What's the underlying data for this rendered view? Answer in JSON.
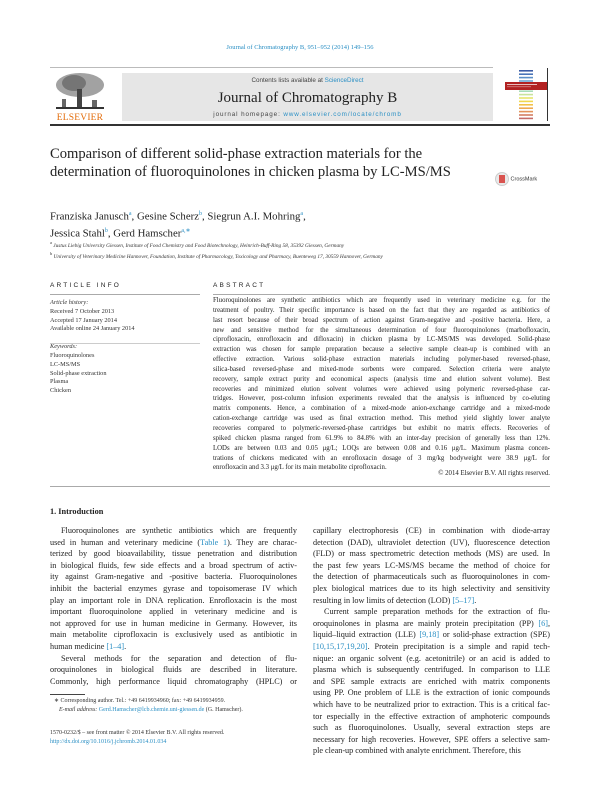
{
  "header": {
    "journal_reference": "Journal of Chromatography B, 951–952 (2014) 149–156",
    "publisher_logo_text": "ELSEVIER",
    "contents_prefix": "Contents lists available at ",
    "contents_link": "ScienceDirect",
    "journal_name": "Journal of Chromatography B",
    "homepage_prefix": "journal homepage: ",
    "homepage_link": "www.elsevier.com/locate/chromb"
  },
  "article": {
    "title": "Comparison of different solid-phase extraction materials for the determination of fluoroquinolones in chicken plasma by LC-MS/MS",
    "crossmark_label": "CrossMark",
    "authors": [
      {
        "name": "Franziska Janusch",
        "sup": "a",
        "sep": ", "
      },
      {
        "name": "Gesine Scherz",
        "sup": "b",
        "sep": ", "
      },
      {
        "name": "Siegrun A.I. Mohring",
        "sup": "a",
        "sep": ","
      },
      {
        "name": "Jessica Stahl",
        "sup": "b",
        "sep": ", "
      },
      {
        "name": "Gerd Hamscher",
        "sup": "a,∗",
        "sep": ""
      }
    ],
    "affiliations": [
      {
        "sup": "a",
        "text": "Justus Liebig University Giessen, Institute of Food Chemistry and Food Biotechnology, Heinrich-Buff-Ring 58, 35392 Giessen, Germany"
      },
      {
        "sup": "b",
        "text": "University of Veterinary Medicine Hannover, Foundation, Institute of Pharmacology, Toxicology and Pharmacy, Buenteweg 17, 30559 Hannover, Germany"
      }
    ]
  },
  "article_info": {
    "heading": "ARTICLE INFO",
    "history_label": "Article history:",
    "history": [
      "Received 7 October 2013",
      "Accepted 17 January 2014",
      "Available online 24 January 2014"
    ],
    "keywords_label": "Keywords:",
    "keywords": [
      "Fluoroquinolones",
      "LC-MS/MS",
      "Solid-phase extraction",
      "Plasma",
      "Chicken"
    ]
  },
  "abstract": {
    "heading": "ABSTRACT",
    "paragraphs": [
      [
        "Fluoroquinolones are synthetic antibiotics which are frequently used in veterinary medicine e.g. for the",
        "treatment of poultry. Their specific importance is based on the fact that they are regarded as antibiotics of",
        "last resort because of their broad spectrum of action against Gram-negative and -positive bacteria. Here, a",
        "new and sensitive method for the simultaneous determination of four fluoroquinolones (marbofloxacin,",
        "ciprofloxacin, enrofloxacin and difloxacin) in chicken plasma by LC-MS/MS was developed. Solid-phase",
        "extraction was chosen for sample preparation because a selective sample clean-up is combined with an",
        "effective extraction. Various solid-phase extraction materials including polymer-based reversed-phase,",
        "silica-based reversed-phase and mixed-mode sorbents were compared. Selection criteria were analyte",
        "recovery, sample extract purity and economical aspects (analysis time and elution solvent volume). Best",
        "recoveries and minimized elution solvent volumes were achieved using polymeric reversed-phase car-",
        "tridges. However, post-column infusion experiments revealed that the analysis is influenced by co-eluting",
        "matrix components. Hence, a combination of a mixed-mode anion-exchange cartridge and a mixed-mode",
        "cation-exchange cartridge was used as final extraction method. This method yield slightly lower analyte",
        "recoveries compared to polymeric-reversed-phase cartridges but exhibit no matrix effects. Recoveries of",
        "spiked chicken plasma ranged from 61.9% to 84.8% with an inter-day precision of generally less than 12%.",
        "LODs are between 0.03 and 0.05 μg/L; LOQs are between 0.08 and 0.16 μg/L. Maximum plasma concen-",
        "trations of chickens medicated with an enrofloxacin dosage of 3 mg/kg bodyweight were 38.9 μg/L for",
        "enrofloxacin and 3.3 μg/L for its main metabolite ciprofloxacin."
      ]
    ],
    "copyright": "© 2014 Elsevier B.V. All rights reserved."
  },
  "body": {
    "section_heading": "1.  Introduction",
    "left": [
      [
        "Fluoroquinolones are synthetic antibiotics which are frequently",
        "used in human and veterinary medicine (Table 1). They are charac-",
        "terized by good bioavailability, tissue penetration and distribution",
        "in biological fluids, few side effects and a broad spectrum of activ-",
        "ity against Gram-negative and -positive bacteria. Fluoroquinolones",
        "inhibit the bacterial enzymes gyrase and topoisomerase IV which",
        "play an important role in DNA replication. Enrofloxacin is the most",
        "important fluoroquinolone applied in veterinary medicine and is",
        "not approved for use in human medicine in Germany. However, its",
        "main metabolite ciprofloxacin is exclusively used as antibiotic in",
        "human medicine [1–4]."
      ],
      [
        "Several methods for the separation and detection of flu-",
        "oroquinolones in biological fluids are described in literature.",
        "Commonly, high performance liquid chromatography (HPLC) or"
      ]
    ],
    "right": [
      [
        "capillary electrophoresis (CE) in combination with diode-array",
        "detection (DAD), ultraviolet detection (UV), fluorescence detection",
        "(FLD) or mass spectrometric detection methods (MS) are used. In",
        "the past few years LC-MS/MS became the method of choice for",
        "the detection of pharmaceuticals such as fluoroquinolones in com-",
        "plex biological matrices due to its high selectivity and sensitivity",
        "resulting in low limits of detection (LOD) [5–17]."
      ],
      [
        "Current sample preparation methods for the extraction of flu-",
        "oroquinolones in plasma are mainly protein precipitation (PP) [6],",
        "liquid–liquid extraction (LLE) [9,18] or solid-phase extraction (SPE)",
        "[10,15,17,19,20]. Protein precipitation is a simple and rapid tech-",
        "nique: an organic solvent (e.g. acetonitrile) or an acid is added to",
        "plasma which is subsequently centrifuged. In comparison to LLE",
        "and SPE sample extracts are enriched with matrix components",
        "using PP. One problem of LLE is the extraction of ionic compounds",
        "which have to be neutralized prior to extraction. This is a critical fac-",
        "tor especially in the effective extraction of amphoteric compounds",
        "such as fluoroquinolones. Usually, several extraction steps are",
        "necessary for high recoveries. However, SPE offers a selective sam-",
        "ple clean-up combined with analyte enrichment. Therefore, this"
      ]
    ]
  },
  "footnote": {
    "corresponding": "∗ Corresponding author. Tel.: +49 6419934960; fax: +49 6419934959.",
    "email_label": "E-mail address: ",
    "email": "Gerd.Hamscher@lcb.chemie.uni-giessen.de",
    "email_suffix": " (G. Hamscher).",
    "issn": "1570-0232/$ – see front matter © 2014 Elsevier B.V. All rights reserved.",
    "doi": "http://dx.doi.org/10.1016/j.jchromb.2014.01.034"
  },
  "colors": {
    "link": "#2a8fc4",
    "elsevier_orange": "#e36c0a",
    "header_box": "#e6e6e6"
  }
}
